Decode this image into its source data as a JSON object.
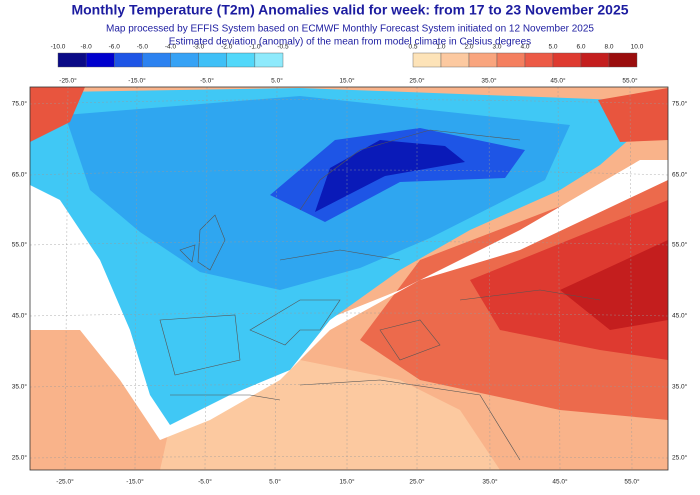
{
  "header": {
    "title": "Monthly Temperature (T2m) Anomalies valid for week: from 17 to 23 November 2025",
    "subtitle": [
      "Map processed by EFFIS System based on ECMWF Monthly Forecast System initiated on 12 November 2025",
      "Estimated deviation (anomaly) of the mean from model climate in Celsius degrees"
    ]
  },
  "legend": {
    "cold": {
      "labels": [
        "-10.0",
        "-8.0",
        "-6.0",
        "-5.0",
        "-4.0",
        "-3.0",
        "-2.0",
        "-1.0",
        "-0.5"
      ],
      "colors": [
        "#0a0a86",
        "#0000cd",
        "#1e55e6",
        "#2c82f0",
        "#36a2f5",
        "#3fc0f7",
        "#52d8fa",
        "#8eeafc"
      ]
    },
    "warm": {
      "labels": [
        "0.5",
        "1.0",
        "2.0",
        "3.0",
        "4.0",
        "5.0",
        "6.0",
        "8.0",
        "10.0"
      ],
      "colors": [
        "#fde3b8",
        "#fcc9a0",
        "#f9a57e",
        "#f47f5f",
        "#ec5a46",
        "#de3a30",
        "#c41e1e",
        "#9a0d0d"
      ]
    }
  },
  "axes": {
    "top_lon": [
      "-25.0°",
      "-15.0°",
      "-5.0°",
      "5.0°",
      "15.0°",
      "25.0°",
      "35.0°",
      "45.0°",
      "55.0°"
    ],
    "bottom_lon": [
      "-25.0°",
      "-15.0°",
      "-5.0°",
      "5.0°",
      "15.0°",
      "25.0°",
      "35.0°",
      "45.0°",
      "55.0°"
    ],
    "left_lat": [
      "75.0°",
      "65.0°",
      "55.0°",
      "45.0°",
      "35.0°",
      "25.0°"
    ],
    "right_lat": [
      "75.0°",
      "65.0°",
      "55.0°",
      "45.0°",
      "35.0°",
      "25.0°"
    ]
  }
}
